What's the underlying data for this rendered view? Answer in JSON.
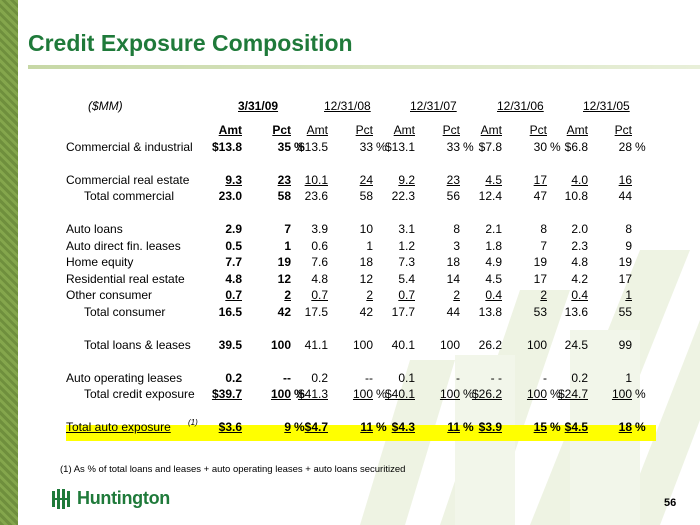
{
  "title": "Credit Exposure Composition",
  "unit_label": "($MM)",
  "dates": [
    "3/31/09",
    "12/31/08",
    "12/31/07",
    "12/31/06",
    "12/31/05"
  ],
  "subheaders": {
    "amt": "Amt",
    "pct": "Pct"
  },
  "rows": [
    {
      "label": "Commercial & industrial",
      "cells": [
        [
          "$13.8",
          "35",
          "%"
        ],
        [
          "$13.5",
          "33",
          "%"
        ],
        [
          "$13.1",
          "33",
          "%"
        ],
        [
          "$7.8",
          "30",
          "%"
        ],
        [
          "$6.8",
          "28",
          "%"
        ]
      ]
    },
    {
      "label": "Commercial real estate",
      "cells": [
        [
          "9.3",
          "23"
        ],
        [
          "10.1",
          "24"
        ],
        [
          "9.2",
          "23"
        ],
        [
          "4.5",
          "17"
        ],
        [
          "4.0",
          "16"
        ]
      ]
    },
    {
      "label": "Total commercial",
      "cells": [
        [
          "23.0",
          "58"
        ],
        [
          "23.6",
          "58"
        ],
        [
          "22.3",
          "56"
        ],
        [
          "12.4",
          "47"
        ],
        [
          "10.8",
          "44"
        ]
      ]
    },
    {
      "label": "Auto loans",
      "cells": [
        [
          "2.9",
          "7"
        ],
        [
          "3.9",
          "10"
        ],
        [
          "3.1",
          "8"
        ],
        [
          "2.1",
          "8"
        ],
        [
          "2.0",
          "8"
        ]
      ]
    },
    {
      "label": "Auto direct fin. leases",
      "cells": [
        [
          "0.5",
          "1"
        ],
        [
          "0.6",
          "1"
        ],
        [
          "1.2",
          "3"
        ],
        [
          "1.8",
          "7"
        ],
        [
          "2.3",
          "9"
        ]
      ]
    },
    {
      "label": "Home equity",
      "cells": [
        [
          "7.7",
          "19"
        ],
        [
          "7.6",
          "18"
        ],
        [
          "7.3",
          "18"
        ],
        [
          "4.9",
          "19"
        ],
        [
          "4.8",
          "19"
        ]
      ]
    },
    {
      "label": "Residential real estate",
      "cells": [
        [
          "4.8",
          "12"
        ],
        [
          "4.8",
          "12"
        ],
        [
          "5.4",
          "14"
        ],
        [
          "4.5",
          "17"
        ],
        [
          "4.2",
          "17"
        ]
      ]
    },
    {
      "label": "Other consumer",
      "cells": [
        [
          "0.7",
          "2"
        ],
        [
          "0.7",
          "2"
        ],
        [
          "0.7",
          "2"
        ],
        [
          "0.4",
          "2"
        ],
        [
          "0.4",
          "1"
        ]
      ]
    },
    {
      "label": "Total consumer",
      "cells": [
        [
          "16.5",
          "42"
        ],
        [
          "17.5",
          "42"
        ],
        [
          "17.7",
          "44"
        ],
        [
          "13.8",
          "53"
        ],
        [
          "13.6",
          "55"
        ]
      ]
    },
    {
      "label": "Total loans & leases",
      "cells": [
        [
          "39.5",
          "100"
        ],
        [
          "41.1",
          "100"
        ],
        [
          "40.1",
          "100"
        ],
        [
          "26.2",
          "100"
        ],
        [
          "24.5",
          "99"
        ]
      ]
    },
    {
      "label": "Auto operating leases",
      "cells": [
        [
          "0.2",
          "--"
        ],
        [
          "0.2",
          "--"
        ],
        [
          "0.1",
          "-"
        ],
        [
          "- -",
          "-"
        ],
        [
          "0.2",
          "1"
        ]
      ]
    },
    {
      "label": "Total credit exposure",
      "cells": [
        [
          "$39.7",
          "100",
          "%"
        ],
        [
          "$41.3",
          "100",
          "%"
        ],
        [
          "$40.1",
          "100",
          "%"
        ],
        [
          "$26.2",
          "100",
          "%"
        ],
        [
          "$24.7",
          "100",
          "%"
        ]
      ]
    },
    {
      "label": "Total auto exposure",
      "footnote_mark": "(1)",
      "cells": [
        [
          "$3.6",
          "9",
          "%"
        ],
        [
          "$4.7",
          "11",
          "%"
        ],
        [
          "$4.3",
          "11",
          "%"
        ],
        [
          "$3.9",
          "15",
          "%"
        ],
        [
          "$4.5",
          "18",
          "%"
        ]
      ]
    }
  ],
  "footnote": "(1)   As % of total loans and leases + auto operating leases + auto loans securitized",
  "logo_text": "Huntington",
  "page_number": "56",
  "colors": {
    "title": "#1f7a3a",
    "highlight": "#ffff00",
    "accent_green": "#6f8f3d"
  }
}
